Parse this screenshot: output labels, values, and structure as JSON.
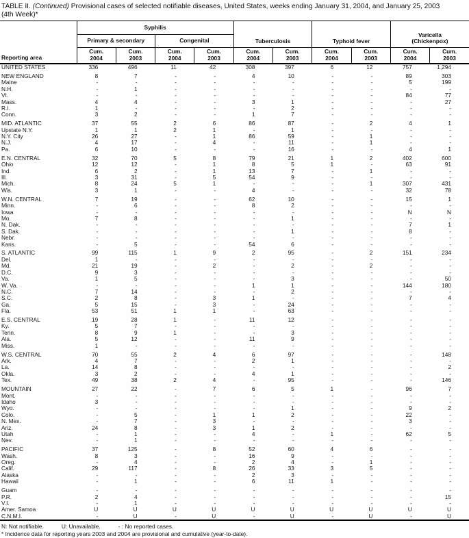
{
  "title": {
    "prefix": "TABLE II.",
    "continued": "(Continued)",
    "rest": "Provisional cases of selected notifiable diseases, United States, weeks ending January 31, 2004, and January 25, 2003",
    "line2": "(4th Week)*"
  },
  "header": {
    "reporting_area": "Reporting area",
    "group_syphilis": "Syphilis",
    "sub_primary_secondary": "Primary & secondary",
    "sub_congenital": "Congenital",
    "group_tuberculosis": "Tuberculosis",
    "group_typhoid": "Typhoid fever",
    "group_varicella_line1": "Varicella",
    "group_varicella_line2": "(Chickenpox)",
    "cum_label": "Cum.",
    "cum_years": [
      "2004",
      "2003",
      "2004",
      "2003",
      "2004",
      "2003",
      "2004",
      "2003",
      "2004",
      "2003"
    ]
  },
  "table": {
    "rows": [
      {
        "area": "UNITED STATES",
        "gap": false,
        "values": [
          "336",
          "496",
          "11",
          "42",
          "308",
          "397",
          "6",
          "12",
          "757",
          "1,294"
        ]
      },
      {
        "area": "NEW ENGLAND",
        "gap": true,
        "values": [
          "8",
          "7",
          "-",
          "-",
          "4",
          "10",
          "-",
          "-",
          "89",
          "303"
        ]
      },
      {
        "area": "Maine",
        "gap": false,
        "values": [
          "-",
          "-",
          "-",
          "-",
          "-",
          "-",
          "-",
          "-",
          "5",
          "199"
        ]
      },
      {
        "area": "N.H.",
        "gap": false,
        "values": [
          "-",
          "1",
          "-",
          "-",
          "-",
          "-",
          "-",
          "-",
          "-",
          "-"
        ]
      },
      {
        "area": "Vt.",
        "gap": false,
        "values": [
          "-",
          "-",
          "-",
          "-",
          "-",
          "-",
          "-",
          "-",
          "84",
          "77"
        ]
      },
      {
        "area": "Mass.",
        "gap": false,
        "values": [
          "4",
          "4",
          "-",
          "-",
          "3",
          "1",
          "-",
          "-",
          "-",
          "27"
        ]
      },
      {
        "area": "R.I.",
        "gap": false,
        "values": [
          "1",
          "-",
          "-",
          "-",
          "-",
          "2",
          "-",
          "-",
          "-",
          "-"
        ]
      },
      {
        "area": "Conn.",
        "gap": false,
        "values": [
          "3",
          "2",
          "-",
          "-",
          "1",
          "7",
          "-",
          "-",
          "-",
          "-"
        ]
      },
      {
        "area": "MID. ATLANTIC",
        "gap": true,
        "values": [
          "37",
          "55",
          "2",
          "6",
          "86",
          "87",
          "-",
          "2",
          "4",
          "1"
        ]
      },
      {
        "area": "Upstate N.Y.",
        "gap": false,
        "values": [
          "1",
          "1",
          "2",
          "1",
          "-",
          "1",
          "-",
          "-",
          "-",
          "-"
        ]
      },
      {
        "area": "N.Y. City",
        "gap": false,
        "values": [
          "26",
          "27",
          "-",
          "1",
          "86",
          "59",
          "-",
          "1",
          "-",
          "-"
        ]
      },
      {
        "area": "N.J.",
        "gap": false,
        "values": [
          "4",
          "17",
          "-",
          "4",
          "-",
          "11",
          "-",
          "1",
          "-",
          "-"
        ]
      },
      {
        "area": "Pa.",
        "gap": false,
        "values": [
          "6",
          "10",
          "-",
          "-",
          "-",
          "16",
          "-",
          "-",
          "4",
          "1"
        ]
      },
      {
        "area": "E.N. CENTRAL",
        "gap": true,
        "values": [
          "32",
          "70",
          "5",
          "8",
          "79",
          "21",
          "1",
          "2",
          "402",
          "600"
        ]
      },
      {
        "area": "Ohio",
        "gap": false,
        "values": [
          "12",
          "12",
          "-",
          "1",
          "8",
          "5",
          "1",
          "-",
          "63",
          "91"
        ]
      },
      {
        "area": "Ind.",
        "gap": false,
        "values": [
          "6",
          "2",
          "-",
          "1",
          "13",
          "7",
          "-",
          "1",
          "-",
          "-"
        ]
      },
      {
        "area": "Ill.",
        "gap": false,
        "values": [
          "3",
          "31",
          "-",
          "5",
          "54",
          "9",
          "-",
          "-",
          "-",
          "-"
        ]
      },
      {
        "area": "Mich.",
        "gap": false,
        "values": [
          "8",
          "24",
          "5",
          "1",
          "-",
          "-",
          "-",
          "1",
          "307",
          "431"
        ]
      },
      {
        "area": "Wis.",
        "gap": false,
        "values": [
          "3",
          "1",
          "-",
          "-",
          "4",
          "-",
          "-",
          "-",
          "32",
          "78"
        ]
      },
      {
        "area": "W.N. CENTRAL",
        "gap": true,
        "values": [
          "7",
          "19",
          "-",
          "-",
          "62",
          "10",
          "-",
          "-",
          "15",
          "1"
        ]
      },
      {
        "area": "Minn.",
        "gap": false,
        "values": [
          "-",
          "6",
          "-",
          "-",
          "8",
          "2",
          "-",
          "-",
          "-",
          "-"
        ]
      },
      {
        "area": "Iowa",
        "gap": false,
        "values": [
          "-",
          "-",
          "-",
          "-",
          "-",
          "-",
          "-",
          "-",
          "N",
          "N"
        ]
      },
      {
        "area": "Mo.",
        "gap": false,
        "values": [
          "7",
          "8",
          "-",
          "-",
          "-",
          "1",
          "-",
          "-",
          "-",
          "-"
        ]
      },
      {
        "area": "N. Dak.",
        "gap": false,
        "values": [
          "-",
          "-",
          "-",
          "-",
          "-",
          "-",
          "-",
          "-",
          "7",
          "1"
        ]
      },
      {
        "area": "S. Dak.",
        "gap": false,
        "values": [
          "-",
          "-",
          "-",
          "-",
          "-",
          "1",
          "-",
          "-",
          "8",
          "-"
        ]
      },
      {
        "area": "Nebr.",
        "gap": false,
        "values": [
          "-",
          "-",
          "-",
          "-",
          "-",
          "-",
          "-",
          "-",
          "-",
          "-"
        ]
      },
      {
        "area": "Kans.",
        "gap": false,
        "values": [
          "-",
          "5",
          "-",
          "-",
          "54",
          "6",
          "-",
          "-",
          "-",
          "-"
        ]
      },
      {
        "area": "S. ATLANTIC",
        "gap": true,
        "values": [
          "99",
          "115",
          "1",
          "9",
          "2",
          "95",
          "-",
          "2",
          "151",
          "234"
        ]
      },
      {
        "area": "Del.",
        "gap": false,
        "values": [
          "1",
          "-",
          "-",
          "-",
          "-",
          "-",
          "-",
          "-",
          "-",
          "-"
        ]
      },
      {
        "area": "Md.",
        "gap": false,
        "values": [
          "21",
          "19",
          "-",
          "2",
          "-",
          "2",
          "-",
          "2",
          "-",
          "-"
        ]
      },
      {
        "area": "D.C.",
        "gap": false,
        "values": [
          "9",
          "3",
          "-",
          "-",
          "-",
          "-",
          "-",
          "-",
          "-",
          "-"
        ]
      },
      {
        "area": "Va.",
        "gap": false,
        "values": [
          "1",
          "5",
          "-",
          "-",
          "-",
          "3",
          "-",
          "-",
          "-",
          "50"
        ]
      },
      {
        "area": "W. Va.",
        "gap": false,
        "values": [
          "-",
          "-",
          "-",
          "-",
          "1",
          "1",
          "-",
          "-",
          "144",
          "180"
        ]
      },
      {
        "area": "N.C.",
        "gap": false,
        "values": [
          "7",
          "14",
          "-",
          "-",
          "-",
          "2",
          "-",
          "-",
          "-",
          "-"
        ]
      },
      {
        "area": "S.C.",
        "gap": false,
        "values": [
          "2",
          "8",
          "-",
          "3",
          "1",
          "-",
          "-",
          "-",
          "7",
          "4"
        ]
      },
      {
        "area": "Ga.",
        "gap": false,
        "values": [
          "5",
          "15",
          "-",
          "3",
          "-",
          "24",
          "-",
          "-",
          "-",
          "-"
        ]
      },
      {
        "area": "Fla.",
        "gap": false,
        "values": [
          "53",
          "51",
          "1",
          "1",
          "-",
          "63",
          "-",
          "-",
          "-",
          "-"
        ]
      },
      {
        "area": "E.S. CENTRAL",
        "gap": true,
        "values": [
          "19",
          "28",
          "1",
          "-",
          "11",
          "12",
          "-",
          "-",
          "-",
          "-"
        ]
      },
      {
        "area": "Ky.",
        "gap": false,
        "values": [
          "5",
          "7",
          "-",
          "-",
          "-",
          "-",
          "-",
          "-",
          "-",
          "-"
        ]
      },
      {
        "area": "Tenn.",
        "gap": false,
        "values": [
          "8",
          "9",
          "1",
          "-",
          "-",
          "3",
          "-",
          "-",
          "-",
          "-"
        ]
      },
      {
        "area": "Ala.",
        "gap": false,
        "values": [
          "5",
          "12",
          "-",
          "-",
          "11",
          "9",
          "-",
          "-",
          "-",
          "-"
        ]
      },
      {
        "area": "Miss.",
        "gap": false,
        "values": [
          "1",
          "-",
          "-",
          "-",
          "-",
          "-",
          "-",
          "-",
          "-",
          "-"
        ]
      },
      {
        "area": "W.S. CENTRAL",
        "gap": true,
        "values": [
          "70",
          "55",
          "2",
          "4",
          "6",
          "97",
          "-",
          "-",
          "-",
          "148"
        ]
      },
      {
        "area": "Ark.",
        "gap": false,
        "values": [
          "4",
          "7",
          "-",
          "-",
          "2",
          "1",
          "-",
          "-",
          "-",
          "-"
        ]
      },
      {
        "area": "La.",
        "gap": false,
        "values": [
          "14",
          "8",
          "-",
          "-",
          "-",
          "-",
          "-",
          "-",
          "-",
          "2"
        ]
      },
      {
        "area": "Okla.",
        "gap": false,
        "values": [
          "3",
          "2",
          "-",
          "-",
          "4",
          "1",
          "-",
          "-",
          "-",
          "-"
        ]
      },
      {
        "area": "Tex.",
        "gap": false,
        "values": [
          "49",
          "38",
          "2",
          "4",
          "-",
          "95",
          "-",
          "-",
          "-",
          "146"
        ]
      },
      {
        "area": "MOUNTAIN",
        "gap": true,
        "values": [
          "27",
          "22",
          "-",
          "7",
          "6",
          "5",
          "1",
          "-",
          "96",
          "7"
        ]
      },
      {
        "area": "Mont.",
        "gap": false,
        "values": [
          "-",
          "-",
          "-",
          "-",
          "-",
          "-",
          "-",
          "-",
          "-",
          "-"
        ]
      },
      {
        "area": "Idaho",
        "gap": false,
        "values": [
          "3",
          "-",
          "-",
          "-",
          "-",
          "-",
          "-",
          "-",
          "-",
          "-"
        ]
      },
      {
        "area": "Wyo.",
        "gap": false,
        "values": [
          "-",
          "-",
          "-",
          "-",
          "-",
          "1",
          "-",
          "-",
          "9",
          "2"
        ]
      },
      {
        "area": "Colo.",
        "gap": false,
        "values": [
          "-",
          "5",
          "-",
          "1",
          "1",
          "2",
          "-",
          "-",
          "22",
          "-"
        ]
      },
      {
        "area": "N. Mex.",
        "gap": false,
        "values": [
          "-",
          "7",
          "-",
          "3",
          "-",
          "-",
          "-",
          "-",
          "3",
          "-"
        ]
      },
      {
        "area": "Ariz.",
        "gap": false,
        "values": [
          "24",
          "8",
          "-",
          "3",
          "1",
          "2",
          "-",
          "-",
          "-",
          "-"
        ]
      },
      {
        "area": "Utah",
        "gap": false,
        "values": [
          "-",
          "1",
          "-",
          "-",
          "4",
          "-",
          "1",
          "-",
          "62",
          "5"
        ]
      },
      {
        "area": "Nev.",
        "gap": false,
        "values": [
          "-",
          "1",
          "-",
          "-",
          "-",
          "-",
          "-",
          "-",
          "-",
          "-"
        ]
      },
      {
        "area": "PACIFIC",
        "gap": true,
        "values": [
          "37",
          "125",
          "-",
          "8",
          "52",
          "60",
          "4",
          "6",
          "-",
          "-"
        ]
      },
      {
        "area": "Wash.",
        "gap": false,
        "values": [
          "8",
          "3",
          "-",
          "-",
          "16",
          "9",
          "-",
          "-",
          "-",
          "-"
        ]
      },
      {
        "area": "Oreg.",
        "gap": false,
        "values": [
          "-",
          "4",
          "-",
          "-",
          "2",
          "4",
          "-",
          "1",
          "-",
          "-"
        ]
      },
      {
        "area": "Calif.",
        "gap": false,
        "values": [
          "29",
          "117",
          "-",
          "8",
          "26",
          "33",
          "3",
          "5",
          "-",
          "-"
        ]
      },
      {
        "area": "Alaska",
        "gap": false,
        "values": [
          "-",
          "-",
          "-",
          "-",
          "2",
          "3",
          "-",
          "-",
          "-",
          "-"
        ]
      },
      {
        "area": "Hawaii",
        "gap": false,
        "values": [
          "-",
          "1",
          "-",
          "-",
          "6",
          "11",
          "1",
          "-",
          "-",
          "-"
        ]
      },
      {
        "area": "Guam",
        "gap": true,
        "values": [
          "-",
          "-",
          "-",
          "-",
          "-",
          "-",
          "-",
          "-",
          "-",
          "-"
        ]
      },
      {
        "area": "P.R.",
        "gap": false,
        "values": [
          "2",
          "4",
          "-",
          "-",
          "-",
          "-",
          "-",
          "-",
          "-",
          "15"
        ]
      },
      {
        "area": "V.I.",
        "gap": false,
        "values": [
          "-",
          "1",
          "-",
          "-",
          "-",
          "-",
          "-",
          "-",
          "-",
          "-"
        ]
      },
      {
        "area": "Amer. Samoa",
        "gap": false,
        "values": [
          "U",
          "U",
          "U",
          "U",
          "U",
          "U",
          "U",
          "U",
          "U",
          "U"
        ]
      },
      {
        "area": "C.N.M.I.",
        "gap": false,
        "values": [
          "-",
          "U",
          "-",
          "U",
          "-",
          "U",
          "-",
          "U",
          "-",
          "U"
        ]
      }
    ]
  },
  "footnotes": {
    "legend_n": "N: Not notifiable.",
    "legend_u": "U: Unavailable.",
    "legend_dash": "- : No reported cases.",
    "asterisk": "* Incidence data for reporting years 2003 and 2004 are provisional and cumulative (year-to-date)."
  }
}
